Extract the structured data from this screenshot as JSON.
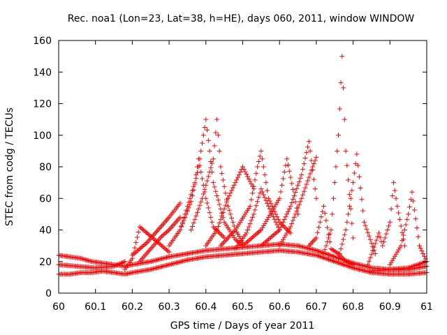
{
  "chart_data": {
    "type": "scatter",
    "title": "Rec. noa1 (Lon=23, Lat=38, h=HE), days 060, 2011, window WINDOW",
    "xlabel": "GPS time / Days of year 2011",
    "ylabel": "STEC from codg / TECUs",
    "xlim": [
      60,
      61
    ],
    "ylim": [
      0,
      160
    ],
    "xticks": [
      60,
      60.1,
      60.2,
      60.3,
      60.4,
      60.5,
      60.6,
      60.7,
      60.8,
      60.9,
      61
    ],
    "xtick_labels": [
      "60",
      "60.1",
      "60.2",
      "60.3",
      "60.4",
      "60.5",
      "60.6",
      "60.7",
      "60.8",
      "60.9",
      "61"
    ],
    "yticks": [
      0,
      20,
      40,
      60,
      80,
      100,
      120,
      140,
      160
    ],
    "ytick_labels": [
      "0",
      "20",
      "40",
      "60",
      "80",
      "100",
      "120",
      "140",
      "160"
    ],
    "grid": false,
    "legend": "none",
    "marker": "+",
    "marker_color": "#ff0000",
    "series": [
      {
        "x": [
          60.0,
          60.03,
          60.06,
          60.09,
          60.12,
          60.15,
          60.18,
          60.2,
          60.25,
          60.3,
          60.35,
          60.4,
          60.45,
          60.5,
          60.55,
          60.6,
          60.65,
          60.7,
          60.75,
          60.8,
          60.85,
          60.9,
          60.95,
          61.0
        ],
        "y": [
          12,
          12,
          13,
          13,
          14,
          13,
          12,
          13,
          15,
          18,
          21,
          23,
          24,
          25,
          26,
          27,
          26,
          24,
          20,
          16,
          13,
          12,
          12,
          13
        ]
      },
      {
        "x": [
          60.0,
          60.03,
          60.06,
          60.09,
          60.12,
          60.15,
          60.18,
          60.2,
          60.25,
          60.3,
          60.35,
          60.4,
          60.45,
          60.5,
          60.55,
          60.6,
          60.65,
          60.7,
          60.75,
          60.8,
          60.85,
          60.9,
          60.95,
          61.0
        ],
        "y": [
          24,
          23,
          22,
          20,
          19,
          18,
          17,
          18,
          20,
          23,
          25,
          27,
          28,
          29,
          30,
          31,
          30,
          27,
          23,
          19,
          16,
          15,
          15,
          17
        ]
      },
      {
        "x": [
          60.0,
          60.05,
          60.1,
          60.15,
          60.18
        ],
        "y": [
          18,
          17,
          16,
          17,
          20
        ]
      },
      {
        "x": [
          60.18,
          60.2,
          60.22,
          60.25,
          60.28,
          60.3
        ],
        "y": [
          15,
          22,
          42,
          36,
          30,
          26
        ]
      },
      {
        "x": [
          60.2,
          60.24,
          60.27,
          60.3,
          60.33
        ],
        "y": [
          24,
          32,
          40,
          48,
          57
        ]
      },
      {
        "x": [
          60.22,
          60.25,
          60.28,
          60.3,
          60.33
        ],
        "y": [
          20,
          28,
          36,
          40,
          48
        ]
      },
      {
        "x": [
          60.3,
          60.33,
          60.36,
          60.38,
          60.4,
          60.42,
          60.45,
          60.48,
          60.5
        ],
        "y": [
          30,
          40,
          58,
          80,
          110,
          70,
          45,
          34,
          30
        ]
      },
      {
        "x": [
          60.33,
          60.35,
          60.37,
          60.38,
          60.4,
          60.42,
          60.45
        ],
        "y": [
          40,
          55,
          70,
          85,
          60,
          42,
          35
        ]
      },
      {
        "x": [
          60.36,
          60.39,
          60.42,
          60.43,
          60.44,
          60.46,
          60.48,
          60.5
        ],
        "y": [
          40,
          60,
          85,
          110,
          80,
          55,
          40,
          32
        ]
      },
      {
        "x": [
          60.4,
          60.43,
          60.46,
          60.5,
          60.53
        ],
        "y": [
          30,
          40,
          60,
          80,
          66
        ]
      },
      {
        "x": [
          60.44,
          60.48,
          60.52,
          60.54,
          60.55,
          60.57,
          60.6,
          60.63
        ],
        "y": [
          30,
          40,
          55,
          80,
          90,
          60,
          45,
          38
        ]
      },
      {
        "x": [
          60.48,
          60.51,
          60.53,
          60.55,
          60.57,
          60.6
        ],
        "y": [
          28,
          38,
          50,
          66,
          55,
          40
        ]
      },
      {
        "x": [
          60.5,
          60.55,
          60.58,
          60.6,
          60.62,
          60.65
        ],
        "y": [
          30,
          40,
          52,
          60,
          85,
          50
        ]
      },
      {
        "x": [
          60.55,
          60.6,
          60.63,
          60.66,
          60.68,
          60.7
        ],
        "y": [
          30,
          40,
          55,
          75,
          96,
          60
        ]
      },
      {
        "x": [
          60.6,
          60.63,
          60.66,
          60.69,
          60.7
        ],
        "y": [
          30,
          42,
          60,
          80,
          86
        ]
      },
      {
        "x": [
          60.68,
          60.7,
          60.72,
          60.74,
          60.76,
          60.78,
          60.8
        ],
        "y": [
          30,
          35,
          55,
          28,
          25,
          20,
          18
        ]
      },
      {
        "x": [
          60.72,
          60.74,
          60.76,
          60.77,
          60.78,
          60.8
        ],
        "y": [
          25,
          40,
          100,
          150,
          90,
          35
        ]
      },
      {
        "x": [
          60.76,
          60.78,
          60.8,
          60.81,
          60.83,
          60.86
        ],
        "y": [
          22,
          40,
          70,
          88,
          45,
          25
        ]
      },
      {
        "x": [
          60.84,
          60.87,
          60.88,
          60.9,
          60.91,
          60.92,
          60.94
        ],
        "y": [
          18,
          38,
          30,
          45,
          70,
          55,
          30
        ]
      },
      {
        "x": [
          60.9,
          60.93,
          60.95,
          60.96,
          60.98,
          61.0
        ],
        "y": [
          18,
          30,
          50,
          64,
          30,
          20
        ]
      },
      {
        "x": [
          60.85,
          60.9,
          60.95,
          61.0
        ],
        "y": [
          14,
          15,
          16,
          20
        ]
      }
    ]
  }
}
